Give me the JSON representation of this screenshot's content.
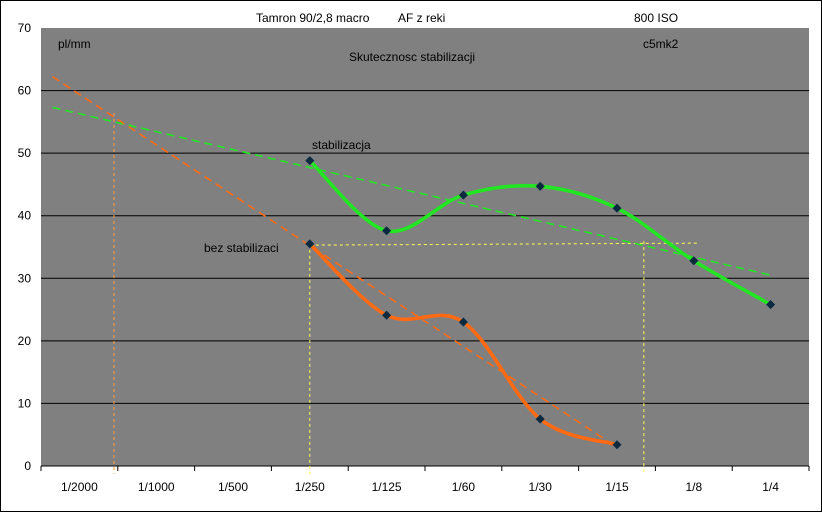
{
  "chart_data": {
    "type": "line",
    "title": "Skutecznosc stabilizacji",
    "header_texts": [
      "Tamron  90/2,8 macro",
      "AF z reki",
      "800 ISO"
    ],
    "corner_texts": [
      "pl/mm",
      "c5mk2"
    ],
    "categories": [
      "1/2000",
      "1/1000",
      "1/500",
      "1/250",
      "1/125",
      "1/60",
      "1/30",
      "1/15",
      "1/8",
      "1/4"
    ],
    "ylim": [
      0,
      70
    ],
    "yticks": [
      0,
      10,
      20,
      30,
      40,
      50,
      60,
      70
    ],
    "grid": true,
    "colors": {
      "plot_bg": "#808080",
      "stabilization": "#22e622",
      "no_stabilization": "#ff6a12",
      "guide_vertical_left": "#ffa040",
      "guide_dotted": "#ffff50",
      "marker": "#0b2a40"
    },
    "series": [
      {
        "label": "stabilizacja",
        "x": [
          3,
          4,
          5,
          6,
          7,
          8,
          9
        ],
        "values": [
          48.8,
          37.6,
          43.3,
          44.7,
          41.2,
          32.8,
          25.8
        ]
      },
      {
        "label": "bez stabilizaci",
        "x": [
          3,
          4,
          5,
          6,
          7
        ],
        "values": [
          35.5,
          24.1,
          23.0,
          7.5,
          3.4
        ]
      }
    ],
    "trendlines": [
      {
        "series": 0,
        "x": [
          0,
          9
        ],
        "values": [
          56.3,
          30.5
        ]
      },
      {
        "series": 1,
        "x": [
          0,
          7
        ],
        "values": [
          59.4,
          3.0
        ]
      }
    ],
    "guides": {
      "vertical": [
        0.45,
        3,
        7.35
      ],
      "horizontal": {
        "x": [
          3,
          8.05
        ],
        "y": 35.3
      }
    }
  }
}
